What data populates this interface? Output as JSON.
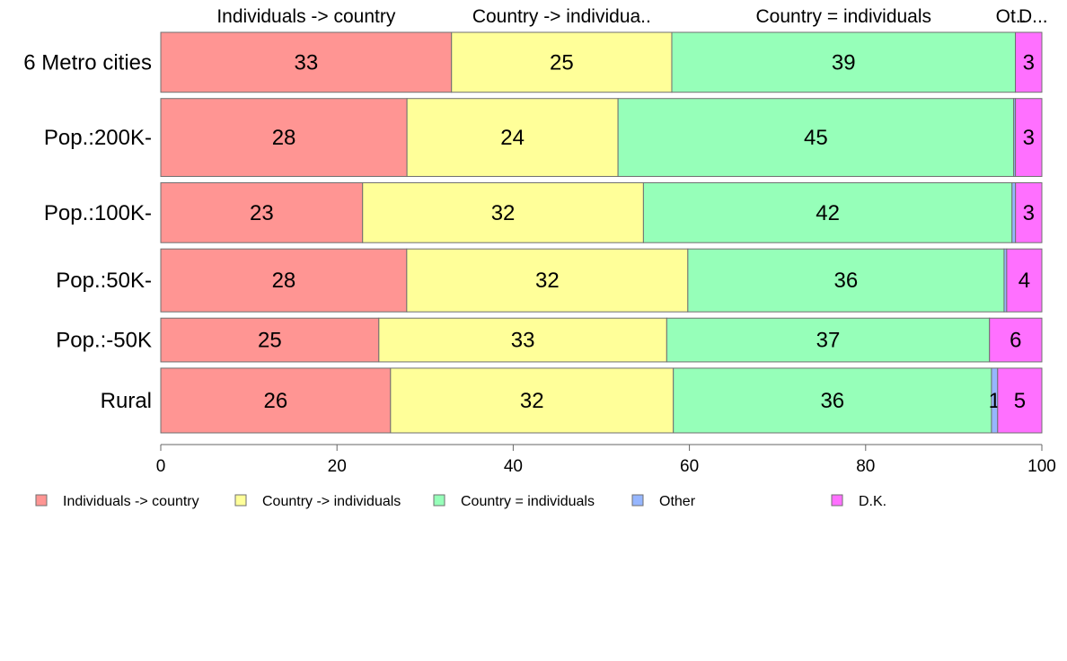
{
  "chart_data": {
    "type": "bar",
    "orientation": "horizontal",
    "stacked": true,
    "categories": [
      "6 Metro cities",
      "Pop.:200K-",
      "Pop.:100K-",
      "Pop.:50K-",
      "Pop.:-50K",
      "Rural"
    ],
    "series": [
      {
        "name": "Individuals -> country",
        "color": "#ff9593",
        "values": [
          33,
          28,
          23,
          28,
          25,
          26
        ],
        "labels": [
          "33",
          "28",
          "23",
          "28",
          "25",
          "26"
        ]
      },
      {
        "name": "Country -> individuals",
        "color": "#ffff99",
        "values": [
          25,
          24,
          32,
          32,
          33,
          32
        ],
        "labels": [
          "25",
          "24",
          "32",
          "32",
          "33",
          "32"
        ]
      },
      {
        "name": "Country = individuals",
        "color": "#96ffb9",
        "values": [
          39,
          45,
          42,
          36,
          37,
          36
        ],
        "labels": [
          "39",
          "45",
          "42",
          "36",
          "37",
          "36"
        ]
      },
      {
        "name": "Other",
        "color": "#96b6ff",
        "values": [
          0,
          0.2,
          0.4,
          0.3,
          0,
          0.7
        ],
        "labels": [
          "",
          "",
          "",
          "",
          "",
          "1"
        ]
      },
      {
        "name": "D.K.",
        "color": "#ff70ff",
        "values": [
          3,
          3,
          3,
          4,
          6,
          5
        ],
        "labels": [
          "3",
          "3",
          "3",
          "4",
          "6",
          "5"
        ]
      }
    ],
    "row_weights": [
      1.0,
      1.3,
      1.0,
      1.05,
      0.73,
      1.08
    ],
    "top_labels": [
      "Individuals -> country",
      "Country -> individua..",
      "Country = individuals",
      "Ot..",
      "D..."
    ],
    "top_label_fractions": [
      0.33,
      0.25,
      0.39,
      0.0,
      0.03
    ],
    "xlim": [
      0,
      100
    ],
    "xticks": [
      0,
      20,
      40,
      60,
      80,
      100
    ],
    "legend": [
      "Individuals -> country",
      "Country -> individuals",
      "Country = individuals",
      "Other",
      "D.K."
    ],
    "legend_position": "bottom",
    "grid": false,
    "xlabel": "",
    "ylabel": ""
  }
}
